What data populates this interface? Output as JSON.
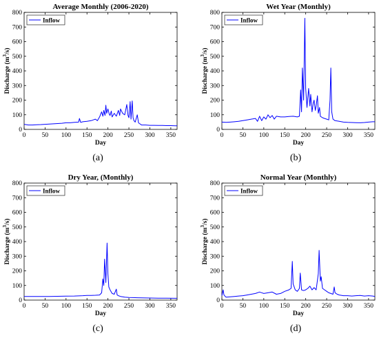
{
  "chart_data": [
    {
      "type": "line",
      "panel_label": "(a)",
      "title": "Average Monthly (2006-2020)",
      "xlabel": "Day",
      "ylabel": "Discharge (m3/s)",
      "xlim": [
        0,
        365
      ],
      "ylim": [
        0,
        800
      ],
      "xticks": [
        0,
        50,
        100,
        150,
        200,
        250,
        300,
        350
      ],
      "yticks": [
        0,
        100,
        200,
        300,
        400,
        500,
        600,
        700,
        800
      ],
      "legend": "top-left",
      "color": "#0000ff",
      "series": [
        {
          "name": "Inflow",
          "x": [
            0,
            10,
            20,
            30,
            40,
            50,
            60,
            70,
            80,
            90,
            100,
            110,
            120,
            130,
            132,
            135,
            140,
            150,
            160,
            165,
            170,
            175,
            180,
            185,
            188,
            190,
            193,
            195,
            197,
            200,
            203,
            205,
            208,
            210,
            215,
            220,
            225,
            228,
            230,
            235,
            240,
            245,
            248,
            250,
            253,
            255,
            258,
            260,
            262,
            265,
            270,
            273,
            275,
            278,
            280,
            290,
            300,
            310,
            320,
            330,
            340,
            350,
            360,
            365
          ],
          "y": [
            35,
            30,
            30,
            32,
            33,
            35,
            36,
            38,
            40,
            42,
            45,
            45,
            48,
            50,
            75,
            48,
            52,
            55,
            60,
            65,
            70,
            60,
            85,
            120,
            90,
            130,
            95,
            165,
            110,
            140,
            105,
            95,
            125,
            85,
            110,
            90,
            130,
            95,
            140,
            110,
            100,
            170,
            95,
            80,
            190,
            70,
            195,
            80,
            60,
            50,
            100,
            45,
            40,
            35,
            30,
            30,
            28,
            28,
            27,
            27,
            26,
            26,
            25,
            25
          ]
        }
      ]
    },
    {
      "type": "line",
      "panel_label": "(b)",
      "title": "Wet Year (Monthly)",
      "xlabel": "Day",
      "ylabel": "Discharge (m3/s)",
      "xlim": [
        0,
        365
      ],
      "ylim": [
        0,
        800
      ],
      "xticks": [
        0,
        50,
        100,
        150,
        200,
        250,
        300,
        350
      ],
      "yticks": [
        0,
        100,
        200,
        300,
        400,
        500,
        600,
        700,
        800
      ],
      "legend": "top-left",
      "color": "#0000ff",
      "series": [
        {
          "name": "Inflow",
          "x": [
            0,
            10,
            20,
            30,
            40,
            50,
            60,
            70,
            80,
            85,
            90,
            95,
            100,
            105,
            110,
            115,
            120,
            125,
            130,
            140,
            150,
            160,
            170,
            180,
            185,
            188,
            190,
            192,
            195,
            198,
            200,
            203,
            205,
            207,
            210,
            212,
            215,
            218,
            220,
            223,
            225,
            228,
            230,
            233,
            235,
            240,
            245,
            250,
            255,
            258,
            260,
            262,
            265,
            270,
            280,
            290,
            300,
            310,
            320,
            330,
            340,
            350,
            360,
            365
          ],
          "y": [
            50,
            48,
            50,
            52,
            55,
            60,
            65,
            70,
            75,
            55,
            90,
            60,
            85,
            70,
            100,
            80,
            95,
            70,
            90,
            85,
            85,
            88,
            90,
            85,
            90,
            270,
            120,
            420,
            200,
            760,
            280,
            150,
            220,
            280,
            160,
            240,
            120,
            180,
            200,
            130,
            160,
            230,
            110,
            150,
            90,
            80,
            75,
            70,
            65,
            200,
            420,
            120,
            70,
            60,
            55,
            50,
            48,
            47,
            46,
            45,
            47,
            50,
            52,
            52
          ]
        }
      ]
    },
    {
      "type": "line",
      "panel_label": "(c)",
      "title": "Dry Year, (Monthly)",
      "xlabel": "Day",
      "ylabel": "Discharge (m3/s)",
      "xlim": [
        0,
        365
      ],
      "ylim": [
        0,
        800
      ],
      "xticks": [
        0,
        50,
        100,
        150,
        200,
        250,
        300,
        350
      ],
      "yticks": [
        0,
        100,
        200,
        300,
        400,
        500,
        600,
        700,
        800
      ],
      "legend": "top-left",
      "color": "#0000ff",
      "series": [
        {
          "name": "Inflow",
          "x": [
            0,
            20,
            40,
            60,
            80,
            100,
            120,
            140,
            150,
            160,
            170,
            180,
            185,
            188,
            190,
            192,
            195,
            198,
            200,
            202,
            205,
            210,
            215,
            220,
            222,
            225,
            230,
            240,
            250,
            260,
            270,
            280,
            300,
            320,
            340,
            360,
            365
          ],
          "y": [
            25,
            25,
            25,
            25,
            26,
            27,
            28,
            30,
            32,
            32,
            33,
            35,
            50,
            145,
            100,
            280,
            120,
            390,
            180,
            90,
            70,
            45,
            40,
            75,
            35,
            30,
            25,
            20,
            18,
            17,
            16,
            15,
            14,
            13,
            13,
            12,
            12
          ]
        }
      ]
    },
    {
      "type": "line",
      "panel_label": "(d)",
      "title": "Normal Year (Monthly)",
      "xlabel": "Day",
      "ylabel": "Discharge (m3/s)",
      "xlim": [
        0,
        365
      ],
      "ylim": [
        0,
        800
      ],
      "xticks": [
        0,
        50,
        100,
        150,
        200,
        250,
        300,
        350
      ],
      "yticks": [
        0,
        100,
        200,
        300,
        400,
        500,
        600,
        700,
        800
      ],
      "legend": "top-left",
      "color": "#0000ff",
      "series": [
        {
          "name": "Inflow",
          "x": [
            0,
            3,
            5,
            8,
            10,
            20,
            30,
            40,
            50,
            60,
            70,
            80,
            90,
            100,
            110,
            120,
            130,
            140,
            150,
            160,
            165,
            168,
            170,
            175,
            180,
            185,
            187,
            190,
            195,
            200,
            205,
            210,
            215,
            220,
            225,
            230,
            232,
            235,
            237,
            240,
            245,
            250,
            255,
            260,
            265,
            268,
            270,
            275,
            280,
            290,
            300,
            310,
            320,
            330,
            340,
            350,
            360,
            365
          ],
          "y": [
            30,
            70,
            35,
            25,
            20,
            22,
            25,
            28,
            30,
            35,
            40,
            45,
            55,
            45,
            50,
            55,
            40,
            45,
            60,
            70,
            80,
            265,
            110,
            70,
            60,
            80,
            185,
            70,
            65,
            70,
            80,
            95,
            70,
            85,
            70,
            180,
            340,
            130,
            160,
            80,
            70,
            60,
            50,
            45,
            40,
            90,
            50,
            40,
            35,
            30,
            30,
            28,
            30,
            32,
            28,
            30,
            28,
            25
          ]
        }
      ]
    }
  ]
}
